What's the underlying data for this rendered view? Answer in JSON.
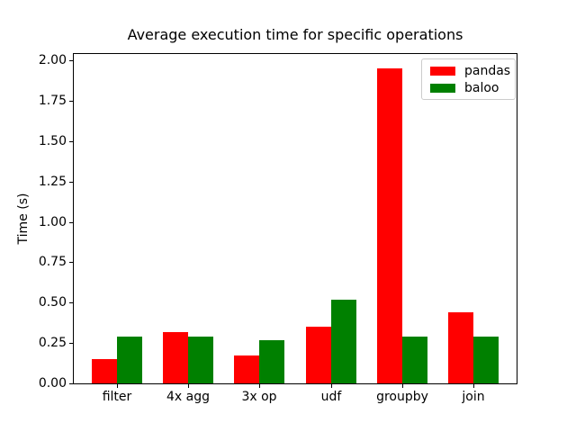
{
  "figure": {
    "background": "#ffffff",
    "spine_color": "#000000"
  },
  "chart_data": {
    "type": "bar",
    "title": "Average execution time for specific operations",
    "xlabel": "",
    "ylabel": "Time (s)",
    "categories": [
      "filter",
      "4x agg",
      "3x op",
      "udf",
      "groupby",
      "join"
    ],
    "series": [
      {
        "name": "pandas",
        "color": "#ff0000",
        "values": [
          0.15,
          0.32,
          0.17,
          0.35,
          1.95,
          0.44
        ]
      },
      {
        "name": "baloo",
        "color": "#008000",
        "values": [
          0.29,
          0.29,
          0.27,
          0.52,
          0.29,
          0.29
        ]
      }
    ],
    "ylim": [
      0,
      2.04
    ],
    "yticks": [
      0,
      0.25,
      0.5,
      0.75,
      1.0,
      1.25,
      1.5,
      1.75,
      2.0
    ],
    "ytick_labels": [
      "0.00",
      "0.25",
      "0.50",
      "0.75",
      "1.00",
      "1.25",
      "1.50",
      "1.75",
      "2.00"
    ],
    "grid": false,
    "legend_position": "upper right"
  }
}
